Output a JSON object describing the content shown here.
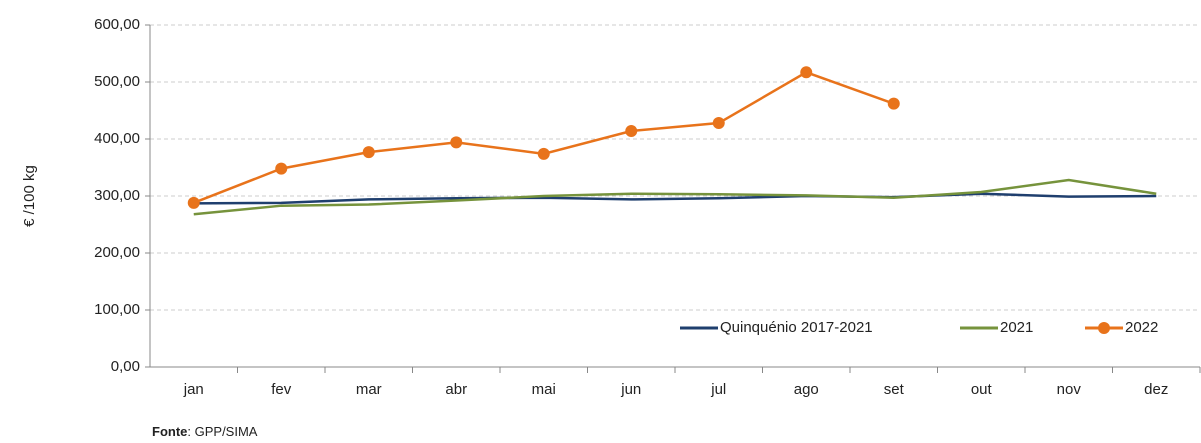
{
  "chart_data": {
    "type": "line",
    "ylabel": "€ /100 kg",
    "categories": [
      "jan",
      "fev",
      "mar",
      "abr",
      "mai",
      "jun",
      "jul",
      "ago",
      "set",
      "out",
      "nov",
      "dez"
    ],
    "series": [
      {
        "name": "Quinquénio  2017-2021",
        "color": "#1f3f6e",
        "marker": false,
        "values": [
          287,
          288,
          294,
          296,
          297,
          294,
          296,
          300,
          298,
          304,
          299,
          300
        ]
      },
      {
        "name": "2021",
        "color": "#76933c",
        "marker": false,
        "values": [
          268,
          283,
          285,
          292,
          300,
          304,
          303,
          301,
          297,
          307,
          328,
          304
        ]
      },
      {
        "name": "2022",
        "color": "#e8731b",
        "marker": true,
        "values": [
          288,
          348,
          377,
          394,
          374,
          414,
          428,
          517,
          462,
          null,
          null,
          null
        ]
      }
    ],
    "ylim": [
      0,
      600
    ],
    "yticks": [
      {
        "value": 0,
        "label": "0,00"
      },
      {
        "value": 100,
        "label": "100,00"
      },
      {
        "value": 200,
        "label": "200,00"
      },
      {
        "value": 300,
        "label": "300,00"
      },
      {
        "value": 400,
        "label": "400,00"
      },
      {
        "value": 500,
        "label": "500,00"
      },
      {
        "value": 600,
        "label": "600,00"
      }
    ],
    "grid": true,
    "legend": "bottom-right",
    "source_label": "Fonte",
    "source": ": GPP/SIMA"
  }
}
